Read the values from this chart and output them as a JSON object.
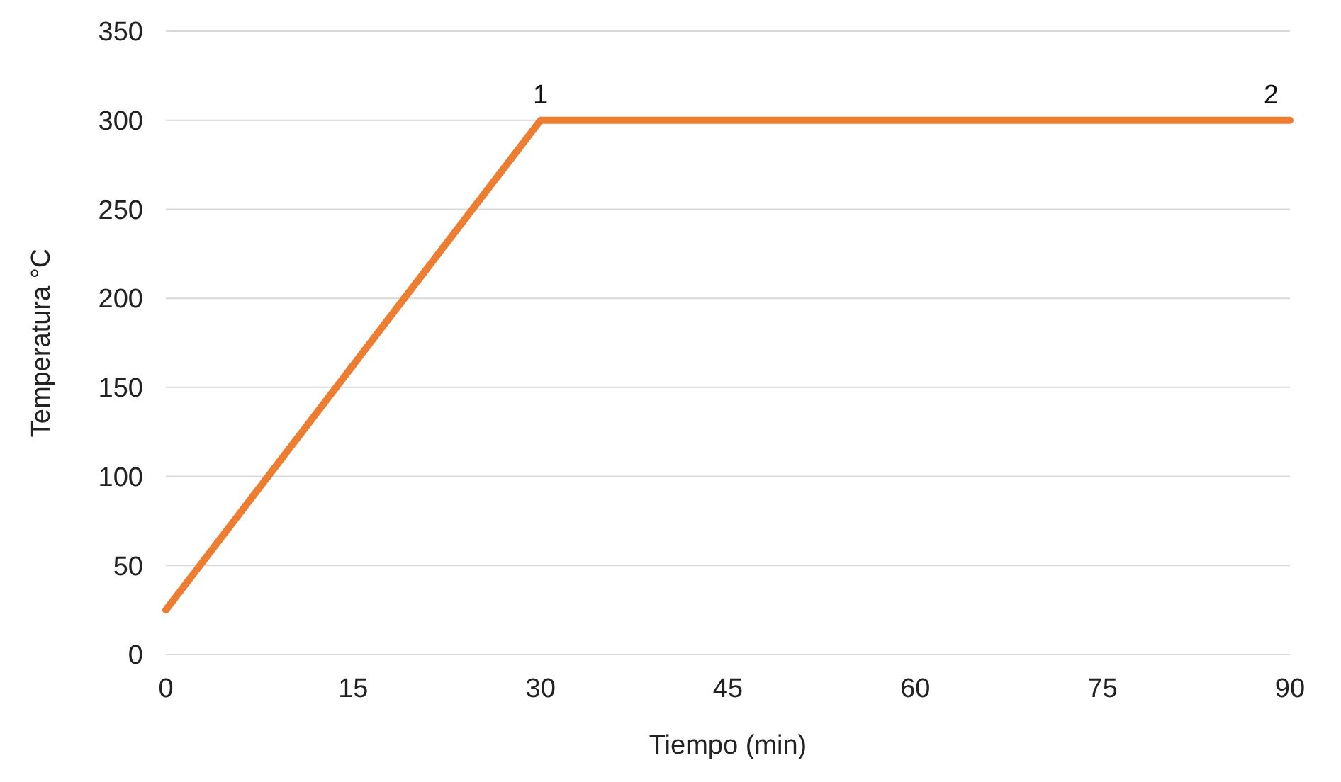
{
  "chart_data": {
    "type": "line",
    "xlabel": "Tiempo (min)",
    "ylabel": "Temperatura °C",
    "x": [
      0,
      30,
      90
    ],
    "series": [
      {
        "color": "#ed7d31",
        "values": [
          25,
          300,
          300
        ]
      }
    ],
    "xlim": [
      0,
      90
    ],
    "xticks": [
      0,
      15,
      30,
      45,
      60,
      75,
      90
    ],
    "ylim": [
      0,
      350
    ],
    "yticks": [
      0,
      50,
      100,
      150,
      200,
      250,
      300,
      350
    ],
    "grid": "y",
    "marker": "none",
    "line_style": "solid",
    "annotations": [
      {
        "text": "1",
        "x": 30,
        "y": 300
      },
      {
        "text": "2",
        "x": 90,
        "y": 300
      }
    ]
  }
}
